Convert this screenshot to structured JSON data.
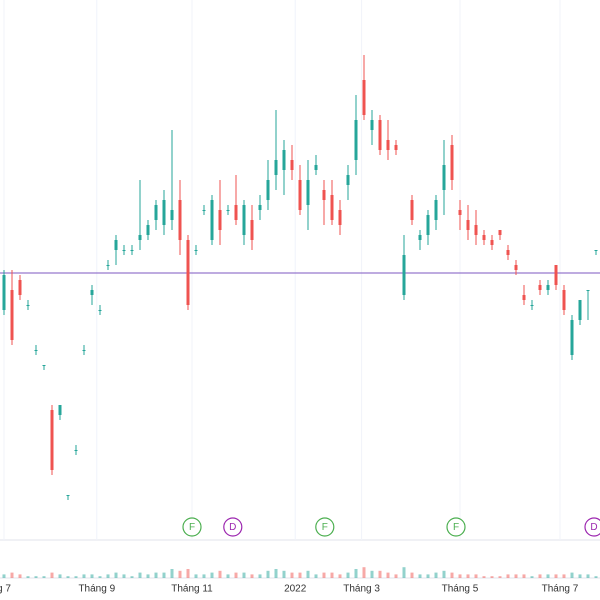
{
  "chart_data": {
    "type": "candlestick",
    "up_color": "#26a69a",
    "down_color": "#ef5350",
    "xlim": [
      -0.5,
      74.5
    ],
    "ylim": [
      0,
      108
    ],
    "xticks": [
      {
        "value": 0,
        "label": "g 7"
      },
      {
        "value": 11.6,
        "label": "Tháng 9"
      },
      {
        "value": 23.5,
        "label": "Tháng 11"
      },
      {
        "value": 36.4,
        "label": "2022"
      },
      {
        "value": 44.7,
        "label": "Tháng 3"
      },
      {
        "value": 57,
        "label": "Tháng 5"
      },
      {
        "value": 69.5,
        "label": "Tháng 7"
      }
    ],
    "ref_line": {
      "value": 53.4,
      "color": "#7e57c2"
    },
    "candles": [
      [
        46,
        54,
        45,
        53
      ],
      [
        50,
        54,
        39,
        40
      ],
      [
        52,
        53,
        48,
        49
      ],
      [
        47,
        48,
        46,
        47
      ],
      [
        38,
        39,
        37,
        38
      ],
      [
        35,
        35,
        34,
        35
      ],
      [
        26,
        27,
        13,
        14
      ],
      [
        25,
        27,
        24,
        27
      ],
      [
        9,
        9,
        8,
        9
      ],
      [
        18,
        19,
        17,
        18
      ],
      [
        38,
        39,
        37,
        38
      ],
      [
        49,
        51,
        47,
        50
      ],
      [
        46,
        47,
        45,
        46
      ],
      [
        55,
        56,
        54,
        55
      ],
      [
        58,
        61,
        55,
        60
      ],
      [
        58,
        59,
        57,
        58
      ],
      [
        58,
        59,
        57,
        58
      ],
      [
        60,
        72,
        58,
        61
      ],
      [
        61,
        64,
        60,
        63
      ],
      [
        64,
        68,
        62,
        67
      ],
      [
        63,
        70,
        61,
        68
      ],
      [
        64,
        82,
        62,
        66
      ],
      [
        68,
        72,
        57,
        60
      ],
      [
        60,
        61,
        46,
        47
      ],
      [
        58,
        59,
        57,
        58
      ],
      [
        66,
        67,
        65,
        66
      ],
      [
        60,
        69,
        59,
        68
      ],
      [
        66,
        72,
        59,
        62
      ],
      [
        66,
        67,
        65,
        66
      ],
      [
        67,
        73,
        63,
        64
      ],
      [
        61,
        68,
        59,
        67
      ],
      [
        64,
        67,
        58,
        60
      ],
      [
        66,
        69,
        64,
        67
      ],
      [
        68,
        76,
        66,
        72
      ],
      [
        73,
        86,
        70,
        76
      ],
      [
        74,
        80,
        69,
        78
      ],
      [
        76,
        79,
        72,
        74
      ],
      [
        72,
        75,
        65,
        66
      ],
      [
        67,
        76,
        62,
        72
      ],
      [
        74,
        77,
        73,
        75
      ],
      [
        70,
        72,
        63,
        68
      ],
      [
        69,
        72,
        63,
        64
      ],
      [
        66,
        68,
        61,
        63
      ],
      [
        71,
        75,
        68,
        73
      ],
      [
        76,
        89,
        73,
        84
      ],
      [
        92,
        97,
        84,
        85
      ],
      [
        82,
        86,
        79,
        84
      ],
      [
        84,
        85,
        77,
        78
      ],
      [
        80,
        84,
        76,
        78
      ],
      [
        79,
        80,
        77,
        78
      ],
      [
        49,
        61,
        48,
        57
      ],
      [
        68,
        69,
        63,
        64
      ],
      [
        60,
        62,
        58,
        61
      ],
      [
        61,
        66,
        59,
        65
      ],
      [
        64,
        69,
        62,
        68
      ],
      [
        70,
        80,
        65,
        75
      ],
      [
        79,
        81,
        70,
        72
      ],
      [
        66,
        68,
        62,
        65
      ],
      [
        64,
        67,
        60,
        62
      ],
      [
        63,
        66,
        59,
        61
      ],
      [
        61,
        62,
        59,
        60
      ],
      [
        60,
        61,
        58,
        59
      ],
      [
        62,
        62,
        60,
        61
      ],
      [
        58,
        59,
        56,
        57
      ],
      [
        55,
        56,
        53,
        54
      ],
      [
        49,
        51,
        47,
        48
      ],
      [
        47,
        48,
        46,
        47
      ],
      [
        51,
        52,
        49,
        50
      ],
      [
        50,
        52,
        49,
        51
      ],
      [
        55,
        55,
        50,
        51
      ],
      [
        50,
        51,
        45,
        46
      ],
      [
        37,
        45,
        36,
        44
      ],
      [
        44,
        48,
        43,
        48
      ],
      [
        50,
        50,
        44,
        50
      ],
      [
        58,
        58,
        57,
        58
      ]
    ],
    "volume_lim": [
      0,
      10
    ],
    "volume": [
      2,
      3,
      2,
      1,
      1,
      1,
      3,
      2,
      1,
      1,
      2,
      2,
      1,
      2,
      3,
      2,
      1,
      3,
      2,
      3,
      3,
      5,
      4,
      5,
      2,
      2,
      3,
      4,
      2,
      3,
      3,
      2,
      2,
      4,
      5,
      4,
      3,
      3,
      4,
      2,
      3,
      3,
      2,
      3,
      5,
      6,
      4,
      4,
      3,
      2,
      6,
      3,
      2,
      2,
      3,
      4,
      3,
      2,
      2,
      2,
      1,
      1,
      1,
      2,
      2,
      2,
      1,
      2,
      2,
      2,
      2,
      3,
      2,
      2,
      1
    ],
    "events": [
      {
        "label": "F",
        "x": 23.5,
        "color": "#4caf50"
      },
      {
        "label": "D",
        "x": 28.6,
        "color": "#9c27b0"
      },
      {
        "label": "F",
        "x": 40.1,
        "color": "#4caf50"
      },
      {
        "label": "F",
        "x": 56.5,
        "color": "#4caf50"
      },
      {
        "label": "D",
        "x": 73.75,
        "color": "#9c27b0"
      }
    ]
  }
}
